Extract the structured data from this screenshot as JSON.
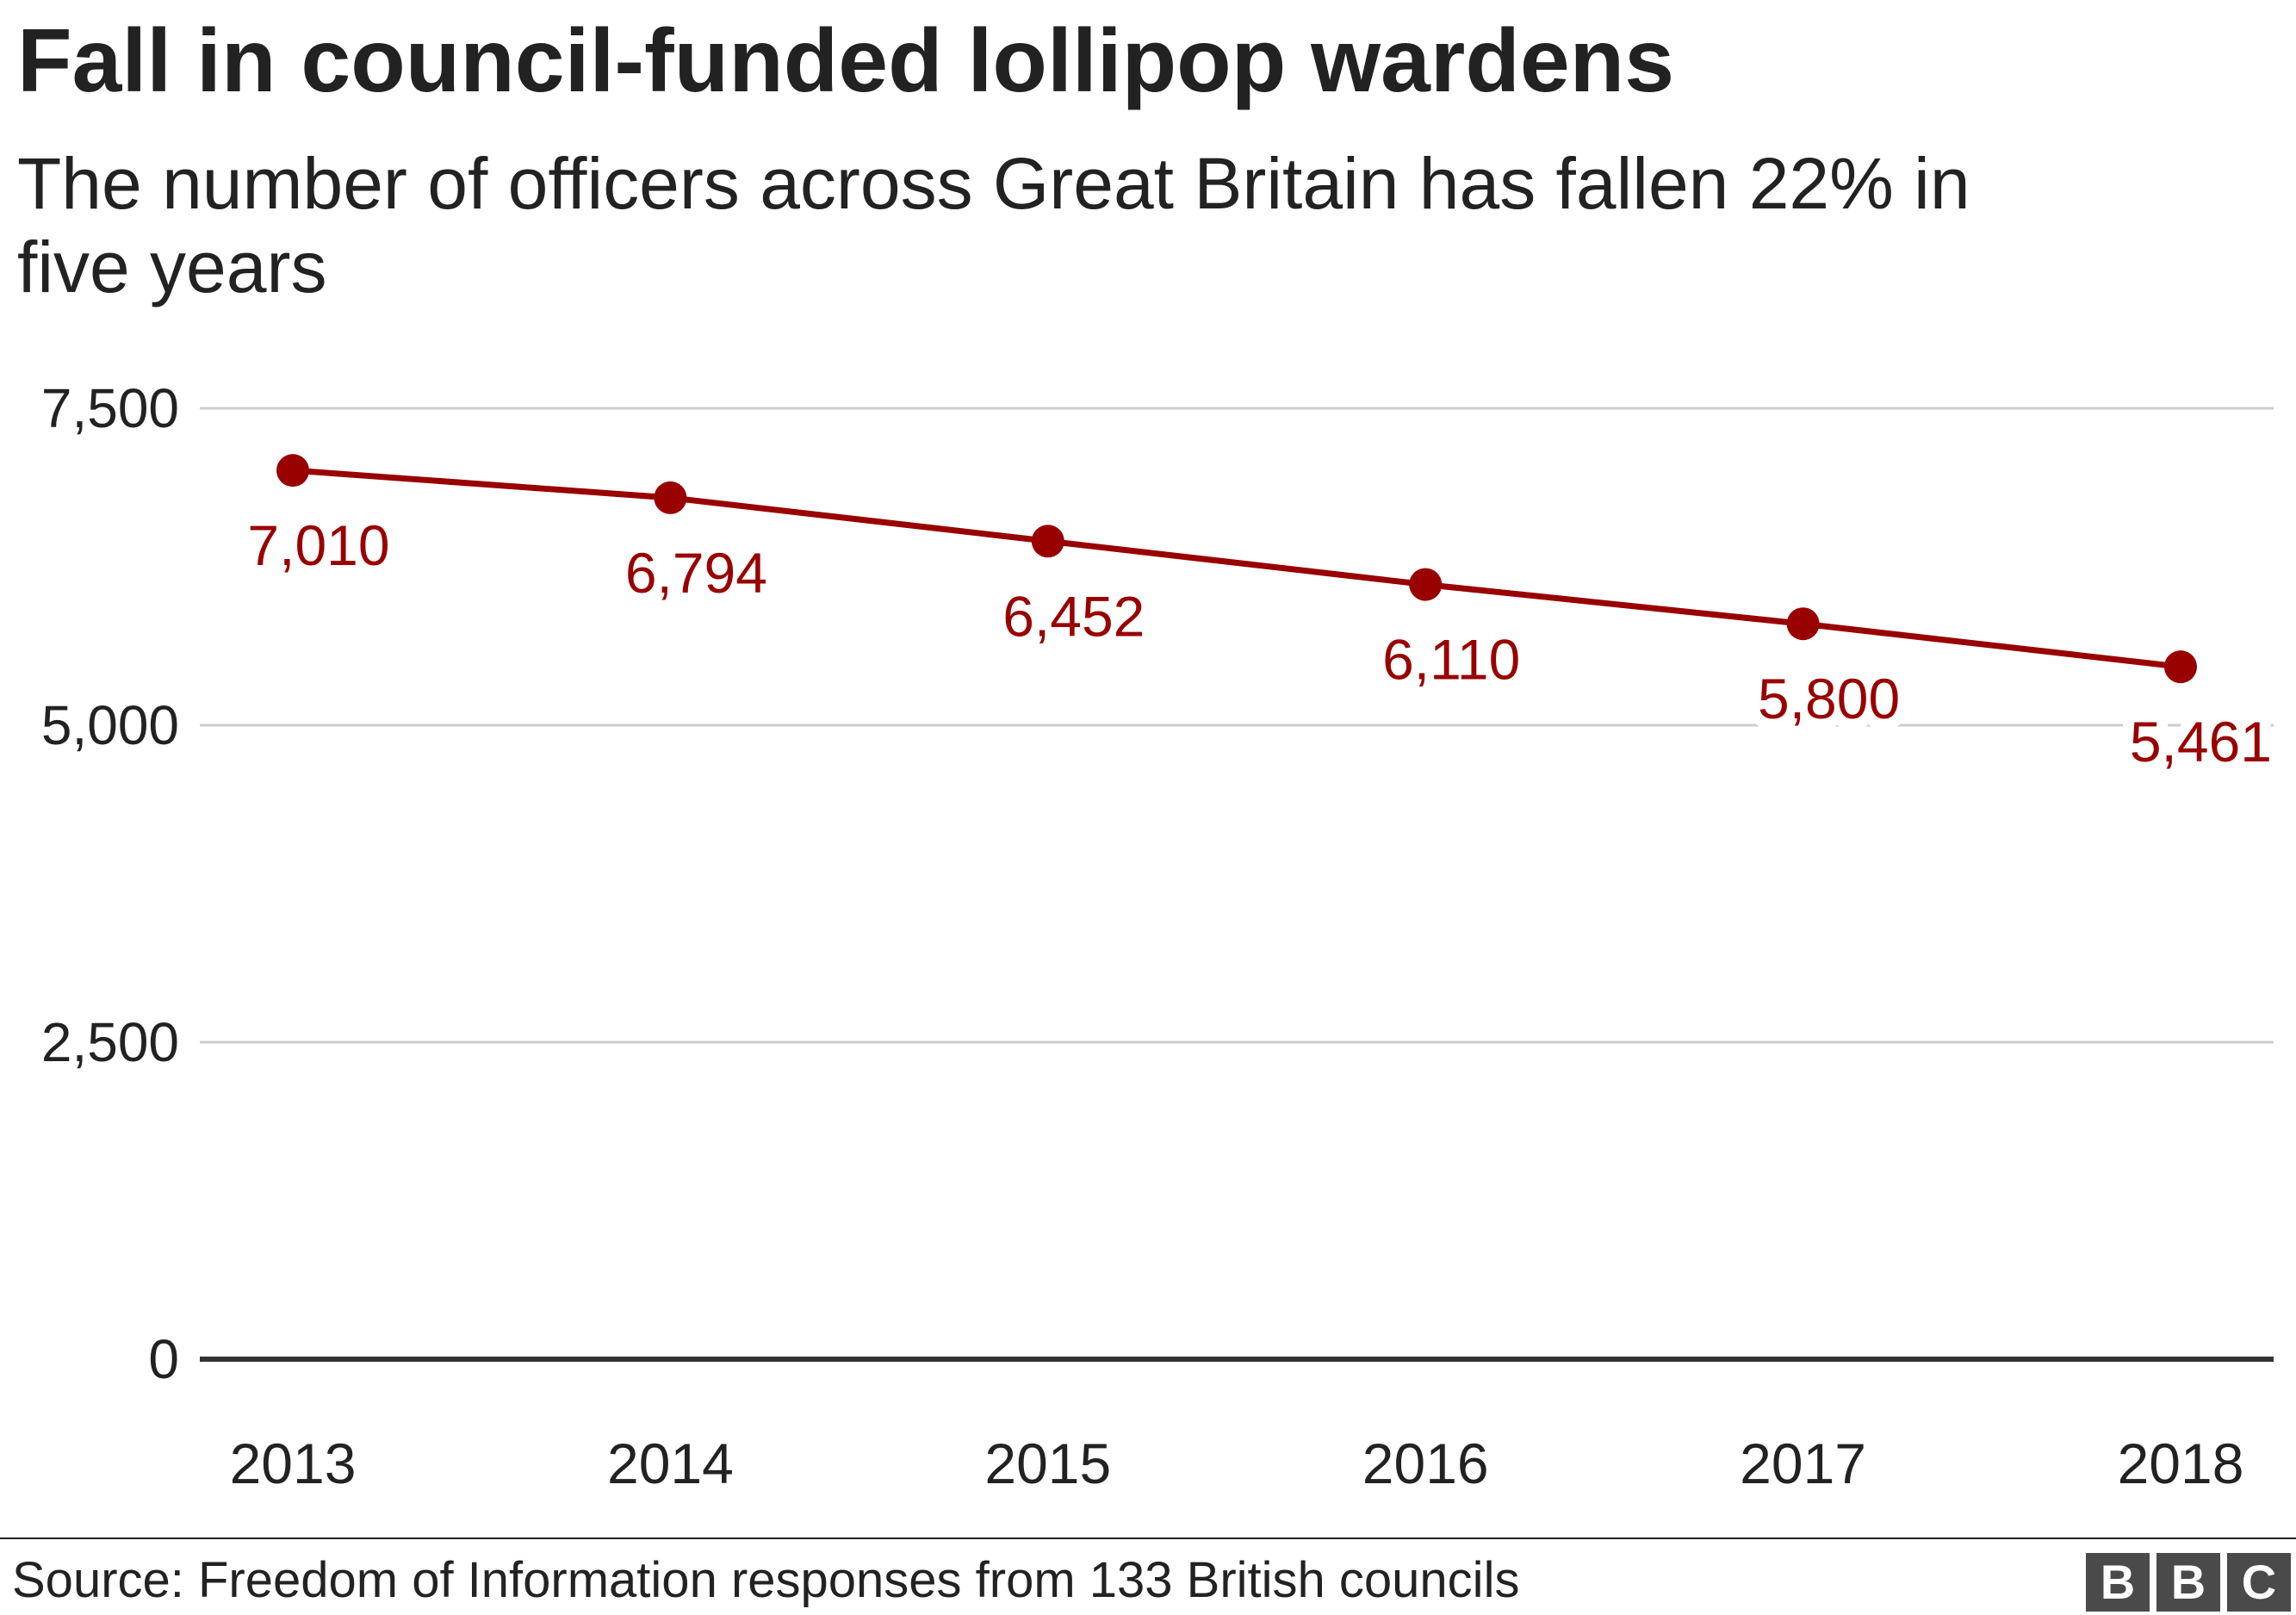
{
  "chart_data": {
    "type": "line",
    "title": "Fall in council-funded lollipop wardens",
    "subtitle": "The number of officers across Great Britain has fallen 22% in five years",
    "x": [
      "2013",
      "2014",
      "2015",
      "2016",
      "2017",
      "2018"
    ],
    "series": [
      {
        "values": [
          7010,
          6794,
          6452,
          6110,
          5800,
          5461
        ],
        "labels": [
          "7,010",
          "6,794",
          "6,452",
          "6,110",
          "5,800",
          "5,461"
        ],
        "color": "#990000"
      }
    ],
    "ylim": [
      0,
      7500
    ],
    "yticks": [
      0,
      2500,
      5000,
      7500
    ],
    "ytick_labels": [
      "0",
      "2,500",
      "5,000",
      "7,500"
    ],
    "grid": true,
    "source": "Source: Freedom of Information responses from 133 British councils"
  },
  "colors": {
    "series": "#990000",
    "gridline": "#cccccc",
    "baseline": "#333333",
    "text": "#222222",
    "brand_block": "#4a4a4a"
  },
  "brand": {
    "letters": [
      "B",
      "B",
      "C"
    ]
  }
}
